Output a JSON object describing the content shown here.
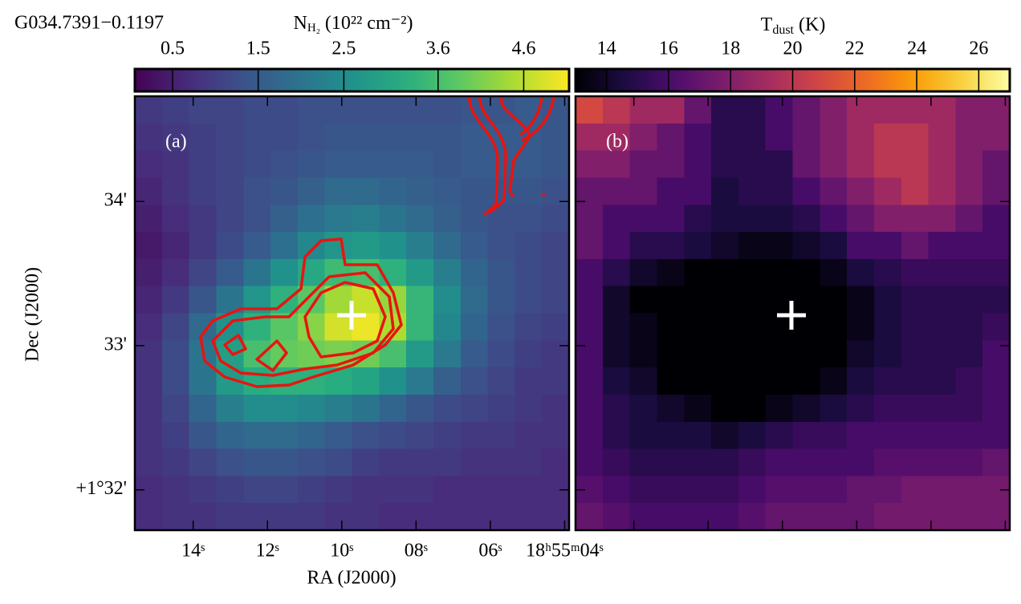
{
  "source_name": "G034.7391−0.1197",
  "chart_data": [
    {
      "type": "heatmap",
      "panel_label": "(a)",
      "colormap": "viridis",
      "colorbar_label": "N",
      "colorbar_label_sub": "H₂",
      "colorbar_label_unit": "(10²² cm⁻²)",
      "clim": [
        0.06,
        5.13
      ],
      "cbar_ticks": [
        0.5,
        1.5,
        2.5,
        3.6,
        4.6
      ],
      "xlabel": "RA (J2000)",
      "ylabel": "Dec (J2000)",
      "xlim": [
        15.57,
        3.88
      ],
      "xticks": [
        {
          "value": 14,
          "label": "14ˢ"
        },
        {
          "value": 12,
          "label": "12ˢ"
        },
        {
          "value": 10,
          "label": "10ˢ"
        },
        {
          "value": 8,
          "label": "08ˢ"
        },
        {
          "value": 6,
          "label": "06ˢ"
        },
        {
          "value": 4,
          "label": "18ʰ55ᵐ04ˢ"
        }
      ],
      "ylim": [
        31.72,
        34.73
      ],
      "yticks": [
        {
          "value": 34,
          "label": "34'"
        },
        {
          "value": 33,
          "label": "33'"
        },
        {
          "value": 32,
          "label": "+1°32'"
        }
      ],
      "image": [
        [
          0.9,
          1.0,
          1.1,
          1.1,
          1.2,
          1.2,
          1.3,
          1.3,
          1.3,
          1.3,
          1.3,
          1.3,
          1.4,
          1.4,
          1.5,
          1.4
        ],
        [
          0.8,
          0.9,
          1.0,
          1.1,
          1.2,
          1.2,
          1.3,
          1.4,
          1.4,
          1.4,
          1.4,
          1.4,
          1.5,
          1.5,
          1.5,
          1.4
        ],
        [
          0.7,
          0.8,
          1.0,
          1.1,
          1.2,
          1.3,
          1.4,
          1.5,
          1.5,
          1.5,
          1.5,
          1.4,
          1.5,
          1.5,
          1.5,
          1.4
        ],
        [
          0.6,
          0.8,
          1.0,
          1.1,
          1.3,
          1.4,
          1.6,
          1.8,
          1.8,
          1.7,
          1.6,
          1.5,
          1.4,
          1.4,
          1.4,
          1.3
        ],
        [
          0.5,
          0.7,
          0.9,
          1.1,
          1.3,
          1.6,
          1.9,
          2.1,
          2.2,
          2.0,
          1.8,
          1.6,
          1.4,
          1.3,
          1.3,
          1.2
        ],
        [
          0.4,
          0.6,
          0.9,
          1.2,
          1.5,
          1.9,
          2.4,
          2.7,
          2.8,
          2.6,
          2.2,
          1.8,
          1.5,
          1.3,
          1.2,
          1.1
        ],
        [
          0.5,
          0.7,
          1.1,
          1.5,
          2.0,
          2.6,
          3.1,
          3.5,
          3.6,
          3.3,
          2.8,
          2.2,
          1.7,
          1.4,
          1.2,
          1.1
        ],
        [
          0.6,
          0.9,
          1.4,
          2.0,
          2.7,
          3.3,
          3.8,
          4.4,
          4.7,
          4.3,
          3.4,
          2.5,
          1.8,
          1.4,
          1.2,
          1.1
        ],
        [
          0.7,
          1.1,
          1.8,
          2.6,
          3.3,
          3.8,
          4.2,
          4.8,
          5.0,
          4.5,
          3.4,
          2.4,
          1.7,
          1.3,
          1.1,
          1.0
        ],
        [
          0.8,
          1.2,
          2.0,
          2.9,
          3.6,
          3.9,
          4.0,
          4.1,
          4.0,
          3.6,
          2.8,
          2.1,
          1.5,
          1.2,
          1.0,
          0.9
        ],
        [
          0.8,
          1.2,
          2.0,
          2.8,
          3.2,
          3.3,
          3.3,
          3.2,
          3.0,
          2.6,
          2.1,
          1.6,
          1.3,
          1.1,
          0.9,
          0.9
        ],
        [
          0.8,
          1.1,
          1.7,
          2.2,
          2.5,
          2.5,
          2.4,
          2.2,
          2.0,
          1.7,
          1.4,
          1.2,
          1.1,
          1.0,
          0.9,
          0.8
        ],
        [
          0.8,
          1.0,
          1.4,
          1.7,
          1.8,
          1.8,
          1.7,
          1.5,
          1.3,
          1.2,
          1.1,
          1.0,
          0.9,
          0.9,
          0.8,
          0.8
        ],
        [
          0.8,
          0.9,
          1.1,
          1.3,
          1.4,
          1.4,
          1.3,
          1.2,
          1.0,
          0.9,
          0.9,
          0.9,
          0.8,
          0.8,
          0.8,
          0.7
        ],
        [
          0.7,
          0.8,
          0.9,
          1.0,
          1.1,
          1.1,
          1.0,
          0.9,
          0.8,
          0.8,
          0.8,
          0.7,
          0.7,
          0.7,
          0.7,
          0.7
        ],
        [
          0.7,
          0.8,
          0.8,
          0.9,
          0.9,
          0.9,
          0.9,
          0.8,
          0.8,
          0.7,
          0.7,
          0.7,
          0.7,
          0.7,
          0.7,
          0.7
        ]
      ]
    },
    {
      "type": "heatmap",
      "panel_label": "(b)",
      "colormap": "inferno",
      "colorbar_label": "T",
      "colorbar_label_sub": "dust",
      "colorbar_label_unit": "(K)",
      "clim": [
        13,
        27
      ],
      "cbar_ticks": [
        14,
        16,
        18,
        20,
        22,
        24,
        26
      ],
      "image": [
        [
          21,
          20,
          19,
          19,
          17,
          15,
          15,
          16,
          17,
          18,
          19,
          19,
          19,
          19,
          18,
          18
        ],
        [
          19,
          19,
          18,
          17,
          16,
          15,
          15,
          16,
          17,
          18,
          19,
          20,
          20,
          19,
          18,
          18
        ],
        [
          18,
          18,
          17,
          17,
          16,
          15,
          15,
          15,
          17,
          18,
          19,
          20,
          20,
          19,
          18,
          17
        ],
        [
          17,
          17,
          17,
          16,
          16,
          14.5,
          15,
          15,
          16,
          17,
          18,
          19,
          20,
          19,
          18,
          17
        ],
        [
          17,
          16,
          16,
          16,
          15,
          14.5,
          14.5,
          14.5,
          15,
          16,
          17,
          18,
          18,
          18,
          17,
          16
        ],
        [
          17,
          16,
          15,
          15,
          14.5,
          14,
          13.5,
          13.5,
          14,
          14.5,
          16,
          16,
          17,
          16,
          16,
          16
        ],
        [
          16,
          15,
          14,
          13.5,
          13,
          13,
          13,
          13,
          13,
          13.5,
          14.5,
          15,
          15.5,
          15.5,
          15.5,
          15.5
        ],
        [
          16,
          14,
          13,
          13,
          13,
          13,
          13,
          13,
          13,
          13,
          13.5,
          14.5,
          15,
          15,
          15,
          15
        ],
        [
          16,
          14,
          13.5,
          13,
          13,
          13,
          13,
          13,
          13,
          13,
          13.5,
          14.5,
          15,
          15,
          15,
          15.5
        ],
        [
          16,
          14,
          13.5,
          13,
          13,
          13,
          13,
          13,
          13,
          13,
          14,
          14.5,
          15,
          15,
          15,
          16
        ],
        [
          16,
          14.5,
          14,
          13,
          13,
          13,
          13,
          13,
          13,
          13.5,
          14.5,
          15,
          15,
          15,
          15.5,
          16
        ],
        [
          16,
          15,
          14.5,
          14,
          13.5,
          13,
          13,
          13.5,
          14,
          14.5,
          15,
          15.5,
          15.5,
          15.5,
          15.5,
          16
        ],
        [
          16,
          15,
          14.5,
          14.5,
          14.5,
          14,
          14.5,
          15,
          15.5,
          15.5,
          16,
          16,
          16,
          16,
          16,
          16
        ],
        [
          16,
          15.5,
          15,
          15,
          15,
          15,
          15.5,
          16,
          16,
          16,
          16,
          16.5,
          16.5,
          16.5,
          16.5,
          17
        ],
        [
          16.5,
          16,
          15.5,
          15.5,
          15.5,
          15.5,
          16,
          16.5,
          16.5,
          16.5,
          17,
          17,
          17.5,
          17.5,
          17.5,
          17.5
        ],
        [
          17,
          16.5,
          16,
          16,
          16,
          16,
          16.5,
          17,
          17,
          17,
          17,
          17.5,
          17.5,
          17.5,
          17.5,
          17.5
        ]
      ]
    }
  ]
}
